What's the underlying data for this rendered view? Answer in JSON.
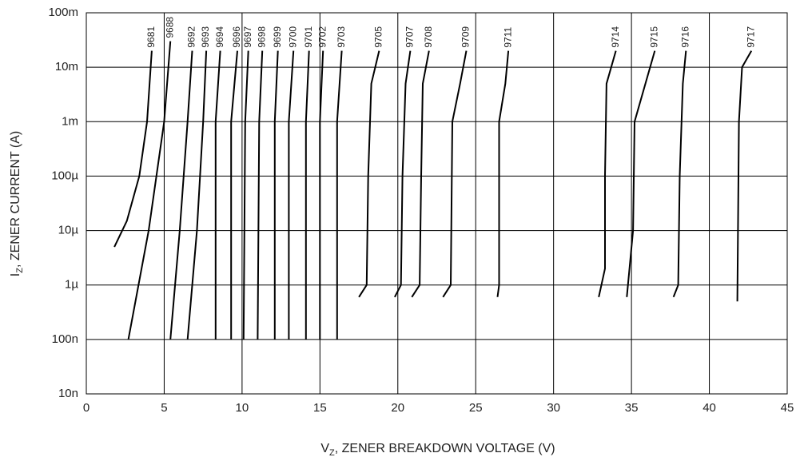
{
  "chart_data": {
    "type": "line",
    "xlabel": {
      "main": "V",
      "sub": "Z",
      "rest": ", ZENER BREAKDOWN VOLTAGE (V)"
    },
    "ylabel": {
      "main": "I",
      "sub": "Z",
      "rest": ", ZENER CURRENT (A)"
    },
    "xlim": [
      0,
      45
    ],
    "xticks": [
      0,
      5,
      10,
      15,
      20,
      25,
      30,
      35,
      40,
      45
    ],
    "ylim": [
      1e-08,
      0.1
    ],
    "ylog": true,
    "grid": true,
    "yticks": [
      {
        "value": 0.1,
        "label": "100m"
      },
      {
        "value": 0.01,
        "label": "10m"
      },
      {
        "value": 0.001,
        "label": "1m"
      },
      {
        "value": 0.0001,
        "label": "100µ"
      },
      {
        "value": 1e-05,
        "label": "10µ"
      },
      {
        "value": 1e-06,
        "label": "1µ"
      },
      {
        "value": 1e-07,
        "label": "100n"
      },
      {
        "value": 1e-08,
        "label": "10n"
      }
    ],
    "series": [
      {
        "name": "9681",
        "color": "#000000",
        "x": [
          1.8,
          2.6,
          3.4,
          3.9,
          4.2
        ],
        "values": [
          5e-06,
          1.5e-05,
          0.0001,
          0.001,
          0.02
        ]
      },
      {
        "name": "9688",
        "color": "#000000",
        "x": [
          2.7,
          4.0,
          5.0,
          5.4
        ],
        "values": [
          1e-07,
          1e-05,
          0.001,
          0.03
        ]
      },
      {
        "name": "9692",
        "color": "#000000",
        "x": [
          5.4,
          6.0,
          6.5,
          6.8
        ],
        "values": [
          1e-07,
          1e-05,
          0.001,
          0.02
        ]
      },
      {
        "name": "9693",
        "color": "#000000",
        "x": [
          6.5,
          7.1,
          7.5,
          7.7
        ],
        "values": [
          1e-07,
          1e-05,
          0.001,
          0.02
        ]
      },
      {
        "name": "9694",
        "color": "#000000",
        "x": [
          8.3,
          8.3,
          8.6
        ],
        "values": [
          1e-07,
          0.001,
          0.02
        ]
      },
      {
        "name": "9696",
        "color": "#000000",
        "x": [
          9.3,
          9.3,
          9.7
        ],
        "values": [
          1e-07,
          0.001,
          0.02
        ]
      },
      {
        "name": "9697",
        "color": "#000000",
        "x": [
          10.1,
          10.2,
          10.4
        ],
        "values": [
          1e-07,
          0.001,
          0.02
        ]
      },
      {
        "name": "9698",
        "color": "#000000",
        "x": [
          11.0,
          11.1,
          11.3
        ],
        "values": [
          1e-07,
          0.001,
          0.02
        ]
      },
      {
        "name": "9699",
        "color": "#000000",
        "x": [
          12.1,
          12.1,
          12.3
        ],
        "values": [
          1e-07,
          0.001,
          0.02
        ]
      },
      {
        "name": "9700",
        "color": "#000000",
        "x": [
          13.0,
          13.0,
          13.3
        ],
        "values": [
          1e-07,
          0.001,
          0.02
        ]
      },
      {
        "name": "9701",
        "color": "#000000",
        "x": [
          14.1,
          14.1,
          14.3
        ],
        "values": [
          1e-07,
          0.001,
          0.02
        ]
      },
      {
        "name": "9702",
        "color": "#000000",
        "x": [
          15.0,
          15.0,
          15.2
        ],
        "values": [
          1e-07,
          0.001,
          0.02
        ]
      },
      {
        "name": "9703",
        "color": "#000000",
        "x": [
          16.1,
          16.1,
          16.4
        ],
        "values": [
          1e-07,
          0.001,
          0.02
        ]
      },
      {
        "name": "9705",
        "color": "#000000",
        "x": [
          17.5,
          18.0,
          18.1,
          18.3,
          18.8
        ],
        "values": [
          6e-07,
          1e-06,
          0.0001,
          0.005,
          0.02
        ]
      },
      {
        "name": "9707",
        "color": "#000000",
        "x": [
          19.8,
          20.2,
          20.3,
          20.5,
          20.8
        ],
        "values": [
          6e-07,
          1e-06,
          0.0001,
          0.005,
          0.02
        ]
      },
      {
        "name": "9708",
        "color": "#000000",
        "x": [
          20.9,
          21.4,
          21.5,
          21.6,
          22.0
        ],
        "values": [
          6e-07,
          1e-06,
          0.0001,
          0.005,
          0.02
        ]
      },
      {
        "name": "9709",
        "color": "#000000",
        "x": [
          22.9,
          23.4,
          23.5,
          24.0,
          24.4
        ],
        "values": [
          6e-07,
          1e-06,
          0.001,
          0.005,
          0.02
        ]
      },
      {
        "name": "9711",
        "color": "#000000",
        "x": [
          26.4,
          26.5,
          26.5,
          26.9,
          27.1
        ],
        "values": [
          6e-07,
          1e-06,
          0.001,
          0.005,
          0.02
        ]
      },
      {
        "name": "9714",
        "color": "#000000",
        "x": [
          32.9,
          33.3,
          33.3,
          33.4,
          34.0
        ],
        "values": [
          6e-07,
          2e-06,
          0.0001,
          0.005,
          0.02
        ]
      },
      {
        "name": "9715",
        "color": "#000000",
        "x": [
          34.7,
          35.1,
          35.2,
          36.5
        ],
        "values": [
          6e-07,
          1e-05,
          0.001,
          0.02
        ]
      },
      {
        "name": "9716",
        "color": "#000000",
        "x": [
          37.7,
          38.0,
          38.1,
          38.3,
          38.5
        ],
        "values": [
          6e-07,
          1e-06,
          0.0001,
          0.005,
          0.02
        ]
      },
      {
        "name": "9717",
        "color": "#000000",
        "x": [
          41.8,
          41.9,
          42.1,
          42.7
        ],
        "values": [
          5e-07,
          0.001,
          0.01,
          0.02
        ]
      }
    ]
  }
}
